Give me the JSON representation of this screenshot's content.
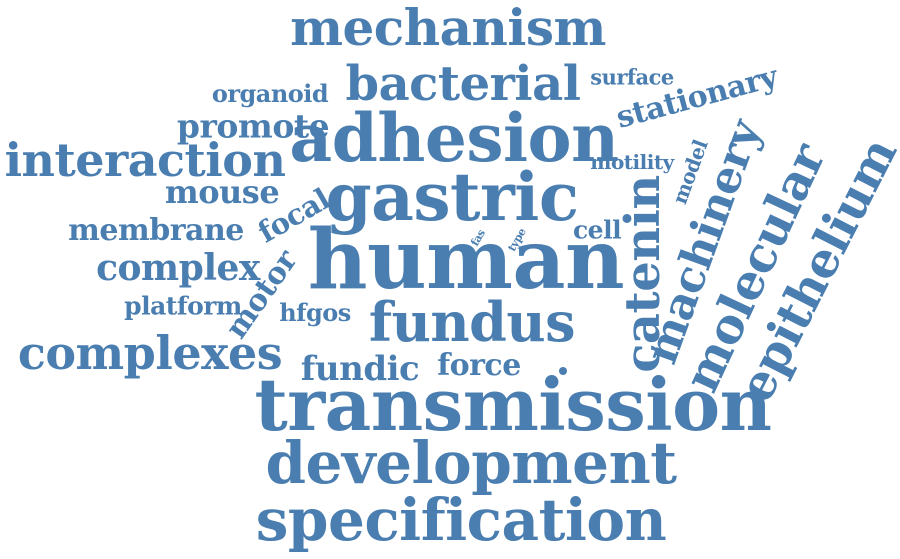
{
  "color": "#4A7EB0",
  "words": {
    "mechanism": "mechanism",
    "bacterial": "bacterial",
    "surface": "surface",
    "organoid": "organoid",
    "stationary": "stationary",
    "promote": "promote",
    "adhesion": "adhesion",
    "interaction": "interaction",
    "motility": "motility",
    "model": "model",
    "machinery": "machinery",
    "mouse": "mouse",
    "gastric": "gastric",
    "catenin": "catenin",
    "molecular": "molecular",
    "epithelium": "epithelium",
    "membrane": "membrane",
    "focal": "focal",
    "fas": "fas",
    "type": "type",
    "cell": "cell",
    "human": "human",
    "complex": "complex",
    "motor": "motor",
    "platform": "platform",
    "hfgos": "hfgos",
    "fundus": "fundus",
    "complexes": "complexes",
    "fundic": "fundic",
    "force": "force",
    "transmission": "transmission",
    "development": "development",
    "specification": "specification"
  }
}
